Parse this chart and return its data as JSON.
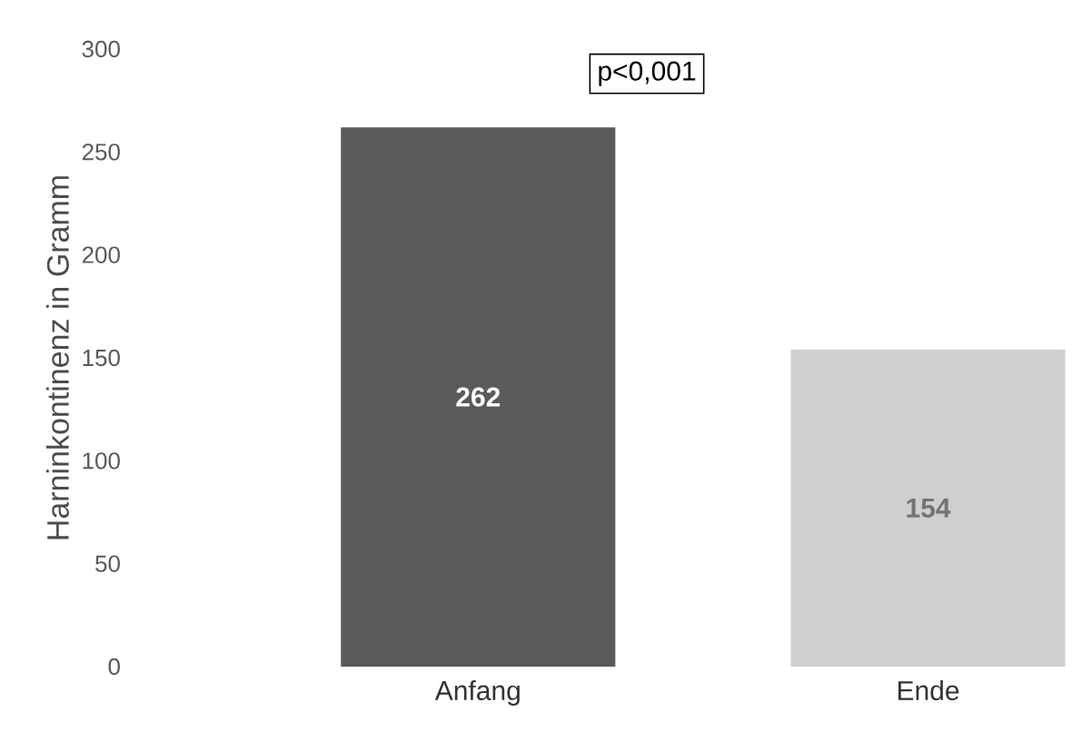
{
  "chart_data": {
    "type": "bar",
    "ylabel": "Harninkontinenz in Gramm",
    "categories": [
      "Anfang",
      "Ende"
    ],
    "values": [
      262,
      154
    ],
    "colors": [
      "#5a5a5a",
      "#cfcfcf"
    ],
    "ylim": [
      0,
      300
    ],
    "yticks": [
      0,
      50,
      100,
      150,
      200,
      250,
      300
    ],
    "data_labels": true,
    "annotations": [
      "p<0,001"
    ]
  }
}
